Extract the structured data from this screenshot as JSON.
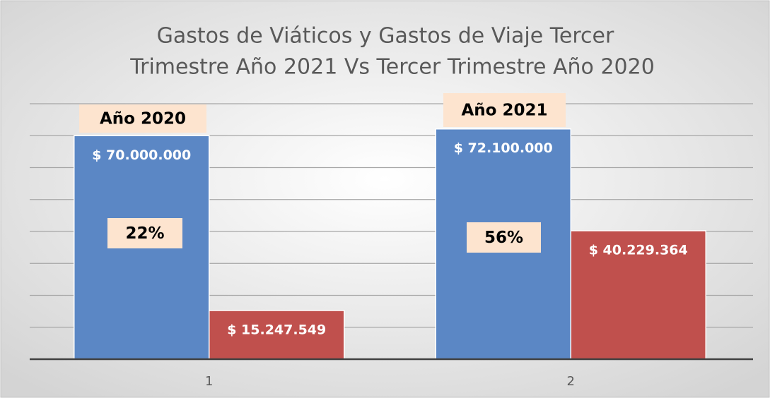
{
  "chart_data": {
    "type": "bar",
    "title": [
      "Gastos de Viáticos y Gastos de Viaje Tercer",
      "Trimestre Año 2021 Vs Tercer Trimestre Año 2020"
    ],
    "categories": [
      "1",
      "2"
    ],
    "series": [
      {
        "color": "#5b87c5",
        "values": [
          70000000,
          72100000
        ],
        "value_labels": [
          "$ 70.000.000",
          "$ 72.100.000"
        ]
      },
      {
        "color": "#c0504d",
        "values": [
          15247549,
          40229364
        ],
        "value_labels": [
          "$ 15.247.549",
          "$ 40.229.364"
        ]
      }
    ],
    "annotations": [
      "Año 2020",
      "22%",
      "Año 2021",
      "56%"
    ],
    "ylim": [
      0,
      80000000
    ],
    "yticks": [
      0,
      10000000,
      20000000,
      30000000,
      40000000,
      50000000,
      60000000,
      70000000,
      80000000
    ],
    "grid": true
  }
}
